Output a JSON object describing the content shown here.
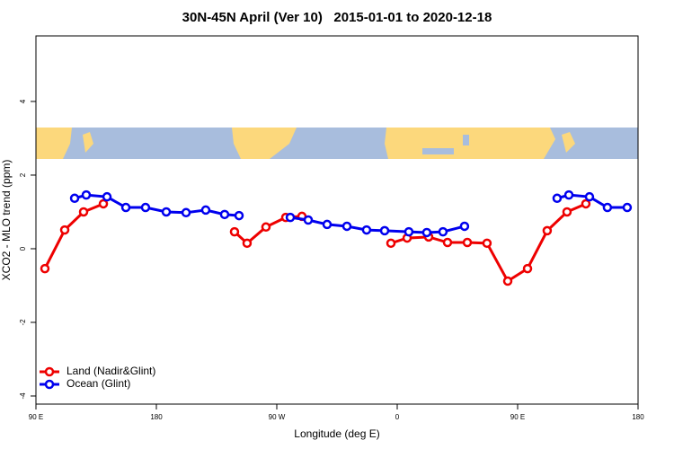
{
  "chart_data": {
    "type": "line",
    "title": "30N-45N April (Ver 10)   2015-01-01 to 2020-12-18",
    "xlabel": "Longitude (deg E)",
    "ylabel": "XCO2 - MLO trend (ppm)",
    "xlim": [
      90,
      540
    ],
    "ylim": [
      -4.22,
      5.78
    ],
    "xticks": [
      {
        "value": 90,
        "label": "90 E"
      },
      {
        "value": 180,
        "label": "180"
      },
      {
        "value": 270,
        "label": "90 W"
      },
      {
        "value": 360,
        "label": "0"
      },
      {
        "value": 450,
        "label": "90 E"
      },
      {
        "value": 540,
        "label": "180"
      }
    ],
    "yticks": [
      -4,
      -2,
      0,
      2,
      4
    ],
    "legend": "bottom-left",
    "series": [
      {
        "name": "Land (Nadir&Glint)",
        "color": "#ee0000",
        "x": [
          96.7,
          111.5,
          125.6,
          140.4,
          null,
          238.4,
          247.8,
          261.9,
          276.7,
          288.8,
          null,
          355.3,
          367.4,
          383.5,
          397.6,
          412.4,
          427.1,
          442.6,
          457.4,
          472.1,
          486.9,
          501.0
        ],
        "values": [
          -0.54,
          0.51,
          1.0,
          1.22,
          null,
          0.46,
          0.15,
          0.59,
          0.85,
          0.88,
          null,
          0.15,
          0.29,
          0.32,
          0.17,
          0.17,
          0.15,
          -0.88,
          -0.54,
          0.49,
          1.0,
          1.22
        ]
      },
      {
        "name": "Ocean (Glint)",
        "color": "#0000ee",
        "x": [
          118.9,
          127.6,
          143.1,
          157.2,
          171.9,
          187.4,
          202.2,
          216.9,
          231.0,
          241.8,
          null,
          280.1,
          293.5,
          307.6,
          322.4,
          337.1,
          350.6,
          368.7,
          382.1,
          394.2,
          410.3,
          null,
          479.5,
          488.3,
          503.7,
          517.1,
          531.9
        ],
        "values": [
          1.37,
          1.46,
          1.41,
          1.12,
          1.12,
          1.0,
          0.98,
          1.05,
          0.93,
          0.9,
          null,
          0.85,
          0.78,
          0.66,
          0.61,
          0.51,
          0.49,
          0.46,
          0.44,
          0.46,
          0.61,
          null,
          1.37,
          1.46,
          1.41,
          1.12,
          1.12
        ]
      }
    ]
  }
}
